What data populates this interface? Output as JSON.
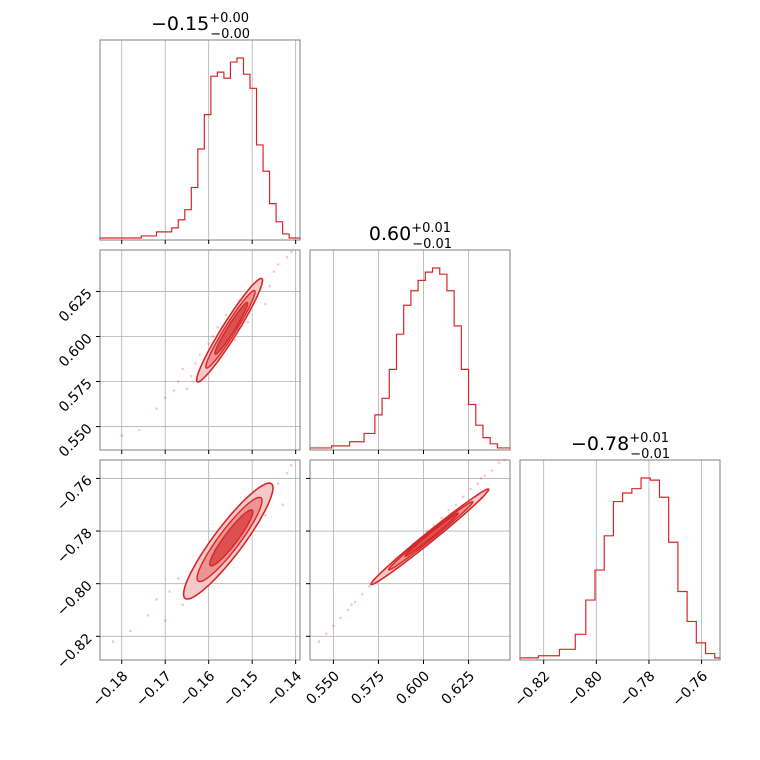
{
  "chart_data": {
    "type": "corner",
    "color": "#d62728",
    "params": [
      {
        "range": [
          -0.185,
          -0.139
        ],
        "ticks": [
          -0.18,
          -0.17,
          -0.16,
          -0.15,
          -0.14
        ],
        "tick_labels": [
          "−0.18",
          "−0.17",
          "−0.16",
          "−0.15",
          "−0.14"
        ],
        "title": {
          "median": "−0.15",
          "plus": "+0.00",
          "minus": "−0.00"
        },
        "hist": {
          "edges": [
            -0.185,
            -0.1755,
            -0.172,
            -0.1685,
            -0.167,
            -0.1655,
            -0.164,
            -0.1625,
            -0.161,
            -0.1595,
            -0.158,
            -0.1565,
            -0.155,
            -0.1535,
            -0.152,
            -0.1505,
            -0.149,
            -0.1475,
            -0.146,
            -0.1445,
            -0.143,
            -0.1415,
            -0.139
          ],
          "counts": [
            1,
            2,
            4,
            6,
            10,
            15,
            26,
            45,
            62,
            81,
            83,
            80,
            88,
            90,
            82,
            75,
            47,
            34,
            18,
            9,
            3,
            1
          ]
        }
      },
      {
        "range": [
          0.537,
          0.648
        ],
        "ticks": [
          0.55,
          0.575,
          0.6,
          0.625
        ],
        "tick_labels": [
          "0.550",
          "0.575",
          "0.600",
          "0.625"
        ],
        "title": {
          "median": "0.60",
          "plus": "+0.01",
          "minus": "−0.01"
        },
        "hist": {
          "edges": [
            0.537,
            0.549,
            0.559,
            0.567,
            0.573,
            0.577,
            0.581,
            0.585,
            0.589,
            0.593,
            0.597,
            0.601,
            0.605,
            0.609,
            0.613,
            0.617,
            0.621,
            0.625,
            0.629,
            0.633,
            0.637,
            0.641,
            0.648
          ],
          "counts": [
            1,
            2,
            4,
            8,
            17,
            25,
            39,
            56,
            70,
            77,
            82,
            86,
            88,
            85,
            77,
            60,
            39,
            22,
            12,
            6,
            3,
            1
          ]
        }
      },
      {
        "range": [
          -0.829,
          -0.753
        ],
        "ticks": [
          -0.82,
          -0.8,
          -0.78,
          -0.76
        ],
        "tick_labels": [
          "−0.82",
          "−0.80",
          "−0.78",
          "−0.76"
        ],
        "title": {
          "median": "−0.78",
          "plus": "+0.01",
          "minus": "−0.01"
        },
        "hist": {
          "edges": [
            -0.829,
            -0.822,
            -0.814,
            -0.808,
            -0.804,
            -0.8005,
            -0.797,
            -0.7935,
            -0.79,
            -0.7865,
            -0.783,
            -0.7795,
            -0.776,
            -0.7725,
            -0.769,
            -0.7655,
            -0.762,
            -0.7585,
            -0.755,
            -0.753
          ],
          "counts": [
            1,
            2,
            5,
            12,
            28,
            42,
            58,
            74,
            78,
            80,
            85,
            84,
            76,
            55,
            32,
            18,
            8,
            3,
            1
          ]
        }
      }
    ],
    "pairs": [
      {
        "row": 1,
        "col": 0,
        "ellipses": [
          {
            "cx": -0.1552,
            "cy": 0.6035,
            "a": 0.014,
            "b": 0.0024,
            "angle": 58,
            "fill": "#f6c9c9"
          },
          {
            "cx": -0.155,
            "cy": 0.604,
            "a": 0.0105,
            "b": 0.0017,
            "angle": 58,
            "fill": "#ec9595"
          },
          {
            "cx": -0.1548,
            "cy": 0.6045,
            "a": 0.007,
            "b": 0.0011,
            "angle": 58,
            "fill": "#dd5050"
          }
        ],
        "scatter": [
          [
            -0.18,
            0.545
          ],
          [
            -0.176,
            0.548
          ],
          [
            -0.172,
            0.56
          ],
          [
            -0.17,
            0.566
          ],
          [
            -0.168,
            0.57
          ],
          [
            -0.167,
            0.575
          ],
          [
            -0.166,
            0.582
          ],
          [
            -0.165,
            0.571
          ],
          [
            -0.163,
            0.585
          ],
          [
            -0.162,
            0.59
          ],
          [
            -0.161,
            0.58
          ],
          [
            -0.16,
            0.596
          ],
          [
            -0.158,
            0.605
          ],
          [
            -0.157,
            0.59
          ],
          [
            -0.156,
            0.612
          ],
          [
            -0.154,
            0.598
          ],
          [
            -0.153,
            0.62
          ],
          [
            -0.151,
            0.608
          ],
          [
            -0.15,
            0.626
          ],
          [
            -0.148,
            0.632
          ],
          [
            -0.147,
            0.618
          ],
          [
            -0.145,
            0.636
          ],
          [
            -0.144,
            0.64
          ],
          [
            -0.142,
            0.644
          ],
          [
            -0.141,
            0.647
          ],
          [
            -0.146,
            0.628
          ],
          [
            -0.159,
            0.6
          ],
          [
            -0.164,
            0.578
          ],
          [
            -0.152,
            0.615
          ],
          [
            -0.149,
            0.622
          ]
        ]
      },
      {
        "row": 2,
        "col": 0,
        "ellipses": [
          {
            "cx": -0.1555,
            "cy": -0.7838,
            "a": 0.0165,
            "b": 0.0038,
            "angle": 53,
            "fill": "#f6c9c9"
          },
          {
            "cx": -0.1552,
            "cy": -0.7832,
            "a": 0.012,
            "b": 0.0027,
            "angle": 53,
            "fill": "#ec9595"
          },
          {
            "cx": -0.1548,
            "cy": -0.7826,
            "a": 0.008,
            "b": 0.0017,
            "angle": 53,
            "fill": "#dd5050"
          }
        ],
        "scatter": [
          [
            -0.182,
            -0.822
          ],
          [
            -0.178,
            -0.818
          ],
          [
            -0.174,
            -0.812
          ],
          [
            -0.172,
            -0.806
          ],
          [
            -0.17,
            -0.814
          ],
          [
            -0.169,
            -0.803
          ],
          [
            -0.167,
            -0.798
          ],
          [
            -0.166,
            -0.808
          ],
          [
            -0.165,
            -0.802
          ],
          [
            -0.163,
            -0.796
          ],
          [
            -0.161,
            -0.79
          ],
          [
            -0.16,
            -0.8
          ],
          [
            -0.158,
            -0.786
          ],
          [
            -0.156,
            -0.792
          ],
          [
            -0.155,
            -0.781
          ],
          [
            -0.153,
            -0.776
          ],
          [
            -0.152,
            -0.785
          ],
          [
            -0.151,
            -0.771
          ],
          [
            -0.15,
            -0.779
          ],
          [
            -0.148,
            -0.768
          ],
          [
            -0.147,
            -0.774
          ],
          [
            -0.146,
            -0.765
          ],
          [
            -0.144,
            -0.762
          ],
          [
            -0.143,
            -0.77
          ],
          [
            -0.142,
            -0.758
          ],
          [
            -0.141,
            -0.755
          ],
          [
            -0.159,
            -0.794
          ],
          [
            -0.164,
            -0.805
          ],
          [
            -0.149,
            -0.772
          ],
          [
            -0.157,
            -0.789
          ]
        ]
      },
      {
        "row": 2,
        "col": 1,
        "ellipses": [
          {
            "cx": 0.6035,
            "cy": -0.7822,
            "a": 0.042,
            "b": 0.0016,
            "angle": 39,
            "fill": "#f6c9c9"
          },
          {
            "cx": 0.604,
            "cy": -0.7818,
            "a": 0.03,
            "b": 0.0011,
            "angle": 39,
            "fill": "#ec9595"
          },
          {
            "cx": 0.6045,
            "cy": -0.7814,
            "a": 0.019,
            "b": 0.0007,
            "angle": 39,
            "fill": "#dd5050"
          }
        ],
        "scatter": [
          [
            0.542,
            -0.822
          ],
          [
            0.546,
            -0.819
          ],
          [
            0.55,
            -0.816
          ],
          [
            0.554,
            -0.813
          ],
          [
            0.558,
            -0.81
          ],
          [
            0.562,
            -0.807
          ],
          [
            0.566,
            -0.804
          ],
          [
            0.57,
            -0.801
          ],
          [
            0.574,
            -0.798
          ],
          [
            0.578,
            -0.795
          ],
          [
            0.582,
            -0.793
          ],
          [
            0.586,
            -0.79
          ],
          [
            0.59,
            -0.788
          ],
          [
            0.594,
            -0.785
          ],
          [
            0.598,
            -0.783
          ],
          [
            0.602,
            -0.78
          ],
          [
            0.606,
            -0.778
          ],
          [
            0.61,
            -0.775
          ],
          [
            0.614,
            -0.772
          ],
          [
            0.618,
            -0.77
          ],
          [
            0.622,
            -0.767
          ],
          [
            0.626,
            -0.764
          ],
          [
            0.63,
            -0.762
          ],
          [
            0.634,
            -0.759
          ],
          [
            0.638,
            -0.757
          ],
          [
            0.642,
            -0.754
          ],
          [
            0.645,
            -0.753
          ],
          [
            0.56,
            -0.808
          ],
          [
            0.575,
            -0.797
          ],
          [
            0.632,
            -0.76
          ]
        ]
      }
    ]
  }
}
